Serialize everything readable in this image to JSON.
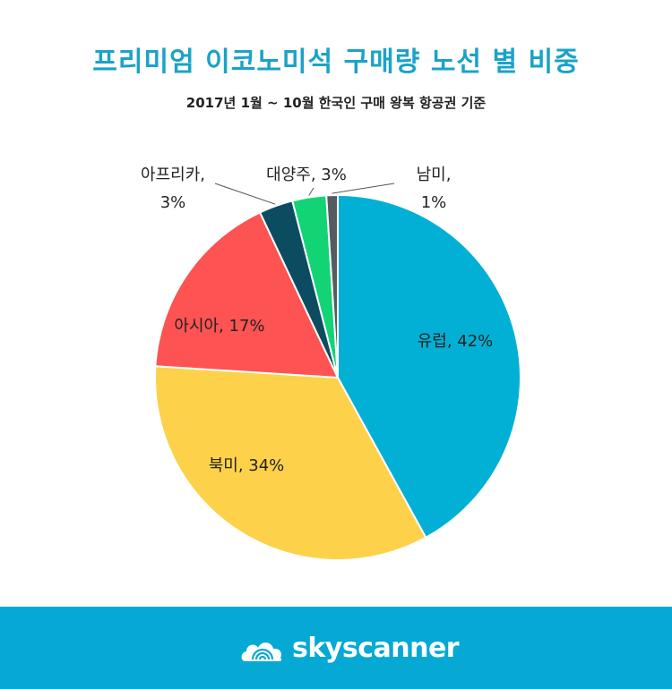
{
  "header": {
    "title": "프리미엄 이코노미석 구매량 노선 별 비중",
    "subtitle": "2017년 1월 ~ 10월 한국인 구매 왕복 항공권 기준"
  },
  "chart_data": {
    "type": "pie",
    "title": "프리미엄 이코노미석 구매량 노선 별 비중",
    "subtitle": "2017년 1월 ~ 10월 한국인 구매 왕복 항공권 기준",
    "unit": "%",
    "slices": [
      {
        "name": "유럽",
        "value": 42,
        "label_line1": "유럽, 42%",
        "label_line2": "",
        "color": "#03b0d5"
      },
      {
        "name": "북미",
        "value": 34,
        "label_line1": "북미, 34%",
        "label_line2": "",
        "color": "#fdd24a"
      },
      {
        "name": "아시아",
        "value": 17,
        "label_line1": "아시아, 17%",
        "label_line2": "",
        "color": "#fd5353"
      },
      {
        "name": "아프리카",
        "value": 3,
        "label_line1": "아프리카,",
        "label_line2": "3%",
        "color": "#0b4c61"
      },
      {
        "name": "대양주",
        "value": 3,
        "label_line1": "대양주, 3%",
        "label_line2": "",
        "color": "#13d474"
      },
      {
        "name": "남미",
        "value": 1,
        "label_line1": "남미,",
        "label_line2": "1%",
        "color": "#555b61"
      }
    ]
  },
  "footer": {
    "brand": "skyscanner",
    "background": "#05a9d4",
    "icon": "skyscanner-cloud-sunrise-icon"
  }
}
